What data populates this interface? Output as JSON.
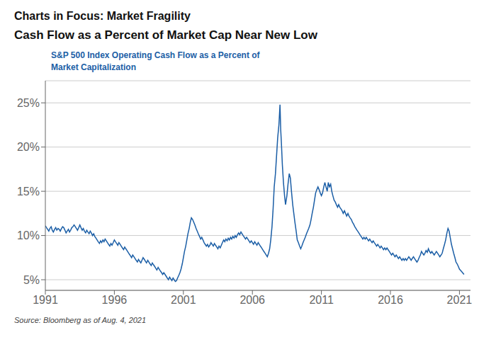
{
  "chart_data": {
    "type": "line",
    "title": "Charts in Focus: Market Fragility",
    "subtitle": "Cash Flow as a Percent of Market Cap Near New Low",
    "annotations": [
      "S&P 500 Index Operating Cash Flow as a Percent of",
      "Market Capitalization"
    ],
    "source": "Source: Bloomberg as of Aug. 4, 2021",
    "color": "#1B5EA6",
    "grid": true,
    "xlim": [
      1991.0,
      2021.8
    ],
    "xticks": [
      1991,
      1996,
      2001,
      2006,
      2011,
      2016,
      2021
    ],
    "ylim": [
      3.8,
      27.5
    ],
    "yticks": [
      {
        "value": 5,
        "label": "5%"
      },
      {
        "value": 10,
        "label": "10%"
      },
      {
        "value": 15,
        "label": "15%"
      },
      {
        "value": 20,
        "label": "20%"
      },
      {
        "value": 25,
        "label": "25%"
      }
    ],
    "x": [
      1991.0,
      1991.08,
      1991.17,
      1991.25,
      1991.33,
      1991.42,
      1991.5,
      1991.58,
      1991.67,
      1991.75,
      1991.83,
      1991.92,
      1992.0,
      1992.08,
      1992.17,
      1992.25,
      1992.33,
      1992.42,
      1992.5,
      1992.58,
      1992.67,
      1992.75,
      1992.83,
      1992.92,
      1993.0,
      1993.08,
      1993.17,
      1993.25,
      1993.33,
      1993.42,
      1993.5,
      1993.58,
      1993.67,
      1993.75,
      1993.83,
      1993.92,
      1994.0,
      1994.08,
      1994.17,
      1994.25,
      1994.33,
      1994.42,
      1994.5,
      1994.58,
      1994.67,
      1994.75,
      1994.83,
      1994.92,
      1995.0,
      1995.08,
      1995.17,
      1995.25,
      1995.33,
      1995.42,
      1995.5,
      1995.58,
      1995.67,
      1995.75,
      1995.83,
      1995.92,
      1996.0,
      1996.08,
      1996.17,
      1996.25,
      1996.33,
      1996.42,
      1996.5,
      1996.58,
      1996.67,
      1996.75,
      1996.83,
      1996.92,
      1997.0,
      1997.08,
      1997.17,
      1997.25,
      1997.33,
      1997.42,
      1997.5,
      1997.58,
      1997.67,
      1997.75,
      1997.83,
      1997.92,
      1998.0,
      1998.08,
      1998.17,
      1998.25,
      1998.33,
      1998.42,
      1998.5,
      1998.58,
      1998.67,
      1998.75,
      1998.83,
      1998.92,
      1999.0,
      1999.08,
      1999.17,
      1999.25,
      1999.33,
      1999.42,
      1999.5,
      1999.58,
      1999.67,
      1999.75,
      1999.83,
      1999.92,
      2000.0,
      2000.08,
      2000.17,
      2000.25,
      2000.33,
      2000.42,
      2000.5,
      2000.58,
      2000.67,
      2000.75,
      2000.83,
      2000.92,
      2001.0,
      2001.08,
      2001.17,
      2001.25,
      2001.33,
      2001.42,
      2001.5,
      2001.58,
      2001.67,
      2001.75,
      2001.83,
      2001.92,
      2002.0,
      2002.08,
      2002.17,
      2002.25,
      2002.33,
      2002.42,
      2002.5,
      2002.58,
      2002.67,
      2002.75,
      2002.83,
      2002.92,
      2003.0,
      2003.08,
      2003.17,
      2003.25,
      2003.33,
      2003.42,
      2003.5,
      2003.58,
      2003.67,
      2003.75,
      2003.83,
      2003.92,
      2004.0,
      2004.08,
      2004.17,
      2004.25,
      2004.33,
      2004.42,
      2004.5,
      2004.58,
      2004.67,
      2004.75,
      2004.83,
      2004.92,
      2005.0,
      2005.08,
      2005.17,
      2005.25,
      2005.33,
      2005.42,
      2005.5,
      2005.58,
      2005.67,
      2005.75,
      2005.83,
      2005.92,
      2006.0,
      2006.08,
      2006.17,
      2006.25,
      2006.33,
      2006.42,
      2006.5,
      2006.58,
      2006.67,
      2006.75,
      2006.83,
      2006.92,
      2007.0,
      2007.08,
      2007.17,
      2007.25,
      2007.33,
      2007.42,
      2007.5,
      2007.58,
      2007.67,
      2007.75,
      2007.83,
      2007.92,
      2008.0,
      2008.05,
      2008.1,
      2008.17,
      2008.25,
      2008.33,
      2008.4,
      2008.5,
      2008.58,
      2008.67,
      2008.75,
      2008.83,
      2008.92,
      2009.0,
      2009.08,
      2009.17,
      2009.25,
      2009.33,
      2009.42,
      2009.5,
      2009.58,
      2009.67,
      2009.75,
      2009.83,
      2009.92,
      2010.0,
      2010.08,
      2010.17,
      2010.25,
      2010.33,
      2010.42,
      2010.5,
      2010.58,
      2010.67,
      2010.75,
      2010.83,
      2010.92,
      2011.0,
      2011.08,
      2011.17,
      2011.25,
      2011.33,
      2011.42,
      2011.5,
      2011.58,
      2011.67,
      2011.75,
      2011.83,
      2011.92,
      2012.0,
      2012.08,
      2012.17,
      2012.25,
      2012.33,
      2012.42,
      2012.5,
      2012.58,
      2012.67,
      2012.75,
      2012.83,
      2012.92,
      2013.0,
      2013.08,
      2013.17,
      2013.25,
      2013.33,
      2013.42,
      2013.5,
      2013.58,
      2013.67,
      2013.75,
      2013.83,
      2013.92,
      2014.0,
      2014.08,
      2014.17,
      2014.25,
      2014.33,
      2014.42,
      2014.5,
      2014.58,
      2014.67,
      2014.75,
      2014.83,
      2014.92,
      2015.0,
      2015.08,
      2015.17,
      2015.25,
      2015.33,
      2015.42,
      2015.5,
      2015.58,
      2015.67,
      2015.75,
      2015.83,
      2015.92,
      2016.0,
      2016.08,
      2016.17,
      2016.25,
      2016.33,
      2016.42,
      2016.5,
      2016.58,
      2016.67,
      2016.75,
      2016.83,
      2016.92,
      2017.0,
      2017.08,
      2017.17,
      2017.25,
      2017.33,
      2017.42,
      2017.5,
      2017.58,
      2017.67,
      2017.75,
      2017.83,
      2017.92,
      2018.0,
      2018.08,
      2018.17,
      2018.25,
      2018.33,
      2018.42,
      2018.5,
      2018.58,
      2018.67,
      2018.75,
      2018.83,
      2018.92,
      2019.0,
      2019.08,
      2019.17,
      2019.25,
      2019.33,
      2019.42,
      2019.5,
      2019.58,
      2019.67,
      2019.75,
      2019.83,
      2019.92,
      2020.0,
      2020.08,
      2020.17,
      2020.25,
      2020.33,
      2020.42,
      2020.5,
      2020.58,
      2020.67,
      2020.75,
      2020.83,
      2020.92,
      2021.0,
      2021.17,
      2021.33
    ],
    "values": [
      11.1,
      10.9,
      10.7,
      10.5,
      10.8,
      11.0,
      10.6,
      10.4,
      10.7,
      10.9,
      10.6,
      10.8,
      10.7,
      10.5,
      10.8,
      11.0,
      10.9,
      10.6,
      10.3,
      10.5,
      10.7,
      10.4,
      10.6,
      10.9,
      11.0,
      11.2,
      11.0,
      10.8,
      10.6,
      10.9,
      11.2,
      10.9,
      10.6,
      10.8,
      10.5,
      10.3,
      10.6,
      10.4,
      10.2,
      10.5,
      10.3,
      10.0,
      10.2,
      9.9,
      9.7,
      9.5,
      9.3,
      9.1,
      9.4,
      9.2,
      9.5,
      9.3,
      9.6,
      9.4,
      9.2,
      9.0,
      8.8,
      9.1,
      8.9,
      9.2,
      9.5,
      9.3,
      9.1,
      8.9,
      9.2,
      9.0,
      8.8,
      8.6,
      8.4,
      8.7,
      8.5,
      8.3,
      8.1,
      7.9,
      7.7,
      7.5,
      7.8,
      7.6,
      7.4,
      7.2,
      7.0,
      7.3,
      7.1,
      6.9,
      7.2,
      7.5,
      7.3,
      7.1,
      6.9,
      7.2,
      7.0,
      6.8,
      6.6,
      6.9,
      6.7,
      6.5,
      6.3,
      6.1,
      6.4,
      6.2,
      6.0,
      5.8,
      5.6,
      5.8,
      5.6,
      5.4,
      5.2,
      5.0,
      5.3,
      5.1,
      4.9,
      5.2,
      5.0,
      4.8,
      4.9,
      5.2,
      5.5,
      5.8,
      6.2,
      6.8,
      7.5,
      8.2,
      8.8,
      9.5,
      10.2,
      10.8,
      11.5,
      12.0,
      11.8,
      11.5,
      11.2,
      10.8,
      10.5,
      10.2,
      9.9,
      9.6,
      9.8,
      9.5,
      9.2,
      9.0,
      8.8,
      9.0,
      8.7,
      8.9,
      9.2,
      9.0,
      8.8,
      9.1,
      8.9,
      8.7,
      8.5,
      8.8,
      8.6,
      8.9,
      9.2,
      9.5,
      9.3,
      9.6,
      9.4,
      9.7,
      9.5,
      9.8,
      9.6,
      9.9,
      9.7,
      10.0,
      9.8,
      10.1,
      10.3,
      10.1,
      10.4,
      10.2,
      10.0,
      9.8,
      9.6,
      9.8,
      9.6,
      9.4,
      9.2,
      9.4,
      9.2,
      9.0,
      9.3,
      9.1,
      8.9,
      9.2,
      9.0,
      8.8,
      8.6,
      8.4,
      8.2,
      8.0,
      7.8,
      7.6,
      8.0,
      8.5,
      9.5,
      11.0,
      13.0,
      15.5,
      17.0,
      19.0,
      21.0,
      22.5,
      24.8,
      22.0,
      20.5,
      18.0,
      16.0,
      14.5,
      13.5,
      14.5,
      15.8,
      17.0,
      16.5,
      15.0,
      13.5,
      12.5,
      11.5,
      10.5,
      9.5,
      9.2,
      8.8,
      8.5,
      8.8,
      9.2,
      9.5,
      9.8,
      10.2,
      10.5,
      10.8,
      11.2,
      11.8,
      12.5,
      13.2,
      14.0,
      14.8,
      15.2,
      15.5,
      15.2,
      14.8,
      14.5,
      14.8,
      15.5,
      16.0,
      15.5,
      15.0,
      16.0,
      15.5,
      15.8,
      15.0,
      14.5,
      14.0,
      13.8,
      13.5,
      13.2,
      13.5,
      13.2,
      13.0,
      12.8,
      12.5,
      12.8,
      12.5,
      12.2,
      12.5,
      12.2,
      12.0,
      11.8,
      11.5,
      11.3,
      11.0,
      10.8,
      10.6,
      10.4,
      10.2,
      10.0,
      9.8,
      9.6,
      9.8,
      9.6,
      9.8,
      9.6,
      9.4,
      9.6,
      9.4,
      9.2,
      9.4,
      9.2,
      9.0,
      8.8,
      9.0,
      8.8,
      8.6,
      8.8,
      8.6,
      8.4,
      8.6,
      8.4,
      8.6,
      8.4,
      8.2,
      8.0,
      7.8,
      8.0,
      7.8,
      7.6,
      7.8,
      7.6,
      7.4,
      7.6,
      7.4,
      7.2,
      7.4,
      7.2,
      7.4,
      7.2,
      7.4,
      7.6,
      7.4,
      7.2,
      7.4,
      7.6,
      7.4,
      7.2,
      7.0,
      7.2,
      7.5,
      7.8,
      8.2,
      8.0,
      7.8,
      8.0,
      8.3,
      8.1,
      8.5,
      8.2,
      8.0,
      8.2,
      8.0,
      7.8,
      8.0,
      8.2,
      8.0,
      7.8,
      7.6,
      7.8,
      8.0,
      8.5,
      9.0,
      9.5,
      10.2,
      10.8,
      10.5,
      9.8,
      9.0,
      8.5,
      8.0,
      7.5,
      7.0,
      6.8,
      6.5,
      6.2,
      5.9,
      5.6
    ]
  }
}
